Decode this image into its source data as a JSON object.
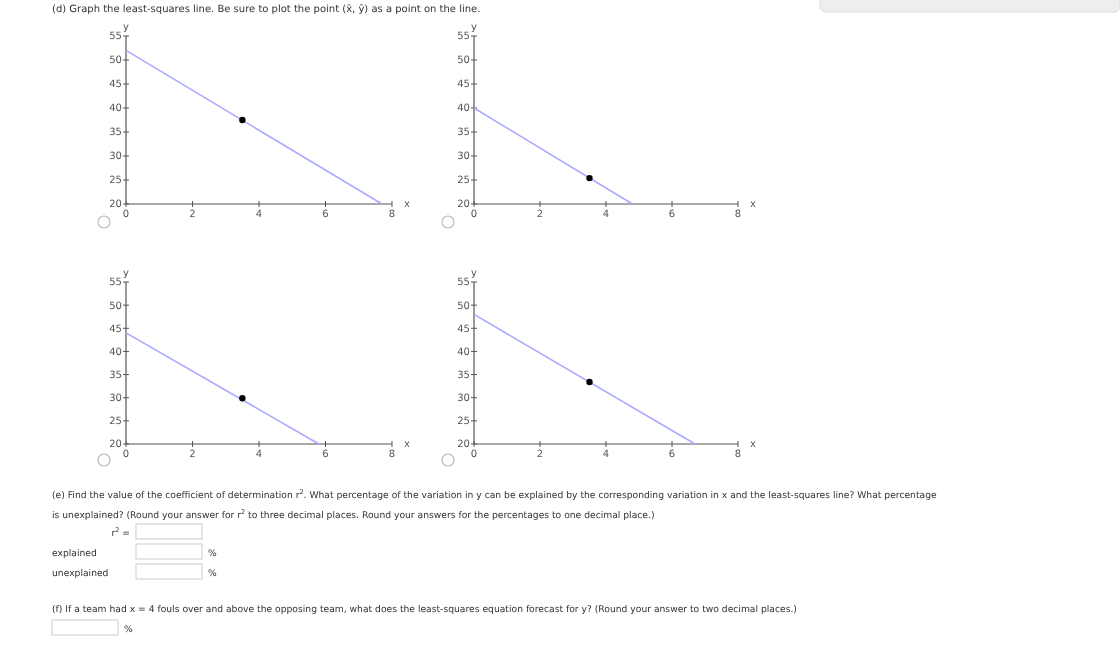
{
  "chart_data": [
    {
      "type": "other",
      "title": "(d) Graph the least-squares line. Be sure to plot the point (x̄, ȳ) as a point on the line."
    },
    {
      "type": "line",
      "xlabel": "x",
      "ylabel": "y",
      "xlim": [
        0,
        8
      ],
      "xticks": [
        0,
        2,
        4,
        6,
        8
      ],
      "ylim": [
        20,
        55
      ],
      "yticks": [
        20,
        25,
        30,
        35,
        40,
        45,
        50,
        55
      ],
      "series": [
        {
          "type": "line",
          "color": "#aaaaff",
          "x": [
            0,
            7.7
          ],
          "values": [
            52,
            20
          ]
        },
        {
          "type": "scatter",
          "color": "#000000",
          "x": [
            3.5
          ],
          "values": [
            37.5
          ],
          "marker": "circle"
        }
      ]
    },
    {
      "type": "line",
      "xlabel": "x",
      "ylabel": "y",
      "xlim": [
        0,
        8
      ],
      "xticks": [
        0,
        2,
        4,
        6,
        8
      ],
      "ylim": [
        20,
        55
      ],
      "yticks": [
        20,
        25,
        30,
        35,
        40,
        45,
        50,
        55
      ],
      "series": [
        {
          "type": "line",
          "color": "#aaaaff",
          "x": [
            0,
            4.8
          ],
          "values": [
            40,
            20
          ]
        },
        {
          "type": "scatter",
          "color": "#000000",
          "x": [
            3.5
          ],
          "values": [
            25.4
          ],
          "marker": "circle"
        }
      ]
    },
    {
      "type": "line",
      "xlabel": "x",
      "ylabel": "y",
      "xlim": [
        0,
        8
      ],
      "xticks": [
        0,
        2,
        4,
        6,
        8
      ],
      "ylim": [
        20,
        55
      ],
      "yticks": [
        20,
        25,
        30,
        35,
        40,
        45,
        50,
        55
      ],
      "series": [
        {
          "type": "line",
          "color": "#aaaaff",
          "x": [
            0,
            5.8
          ],
          "values": [
            44,
            20
          ]
        },
        {
          "type": "scatter",
          "color": "#000000",
          "x": [
            3.5
          ],
          "values": [
            29.9
          ],
          "marker": "circle"
        }
      ]
    },
    {
      "type": "line",
      "xlabel": "x",
      "ylabel": "y",
      "xlim": [
        0,
        8
      ],
      "xticks": [
        0,
        2,
        4,
        6,
        8
      ],
      "ylim": [
        20,
        55
      ],
      "yticks": [
        20,
        25,
        30,
        35,
        40,
        45,
        50,
        55
      ],
      "series": [
        {
          "type": "line",
          "color": "#aaaaff",
          "x": [
            0,
            6.7
          ],
          "values": [
            48,
            20
          ]
        },
        {
          "type": "scatter",
          "color": "#000000",
          "x": [
            3.5
          ],
          "values": [
            33.4
          ],
          "marker": "circle"
        }
      ]
    },
    {
      "type": "other",
      "annotations": [
        "(e) Find the value of the coefficient of determination r$^{2}$. What percentage of the variation in y can be explained by the corresponding variation in x and the least-squares line? What percentage",
        "is unexplained? (Round your answer for r$^{2}$ to three decimal places. Round your answers for the percentages to one decimal place.)",
        "r$^{2}$ =",
        "explained",
        "%",
        "unexplained",
        "%",
        "(f) If a team had x = 4 fouls over and above the opposing team, what does the least-squares equation forecast for y? (Round your answer to two decimal places.)",
        "%"
      ]
    }
  ]
}
